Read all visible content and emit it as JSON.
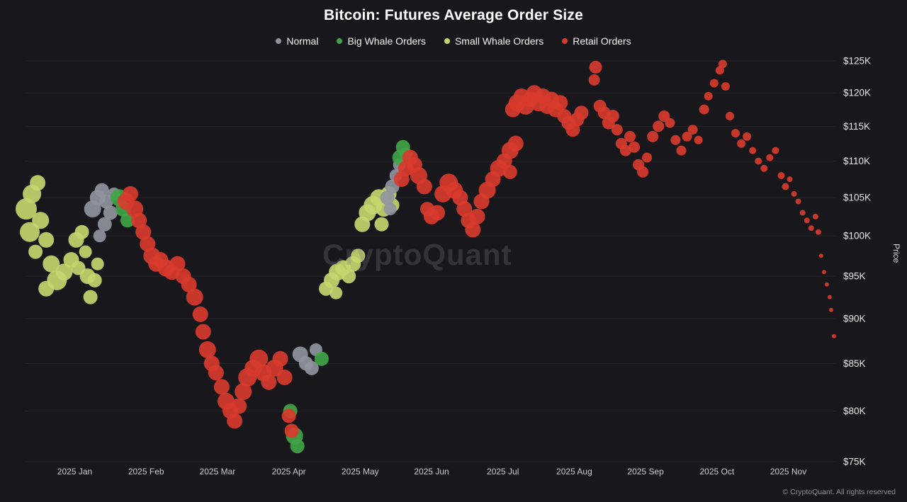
{
  "header": {
    "title": "Bitcoin: Futures Average Order Size"
  },
  "watermark": "CryptoQuant",
  "footer": {
    "copyright": "© CryptoQuant. All rights reserved"
  },
  "chart_data": {
    "type": "scatter",
    "title": "Bitcoin: Futures Average Order Size",
    "xlabel": "",
    "ylabel": "Price",
    "y_scale": "log",
    "grid": true,
    "legend_position": "top",
    "xlim": [
      -0.7,
      10.67
    ],
    "ylim": [
      75,
      125
    ],
    "y_ticks": [
      75,
      80,
      85,
      90,
      95,
      100,
      105,
      110,
      115,
      120,
      125
    ],
    "y_tick_labels": [
      "$75K",
      "$80K",
      "$85K",
      "$90K",
      "$95K",
      "$100K",
      "$105K",
      "$110K",
      "$115K",
      "$120K",
      "$125K"
    ],
    "x_ticks": [
      0,
      1,
      2,
      3,
      4,
      5,
      6,
      7,
      8,
      9,
      10
    ],
    "x_tick_labels": [
      "2025 Jan",
      "2025 Feb",
      "2025 Mar",
      "2025 Apr",
      "2025 May",
      "2025 Jun",
      "2025 Jul",
      "2025 Aug",
      "2025 Sep",
      "2025 Oct",
      "2025 Nov"
    ],
    "series": [
      {
        "name": "Normal",
        "color": "#8f949e",
        "points": [
          [
            0.25,
            103.5,
            12
          ],
          [
            0.32,
            105,
            11
          ],
          [
            0.38,
            106,
            10
          ],
          [
            0.44,
            104.5,
            10
          ],
          [
            0.5,
            103,
            10
          ],
          [
            0.42,
            101.5,
            10
          ],
          [
            0.55,
            105.5,
            9
          ],
          [
            0.35,
            100,
            9
          ],
          [
            3.16,
            86,
            11
          ],
          [
            3.24,
            85,
            10
          ],
          [
            3.32,
            84.5,
            10
          ],
          [
            3.38,
            86.5,
            9
          ],
          [
            4.38,
            105,
            10
          ],
          [
            4.45,
            106.5,
            10
          ],
          [
            4.5,
            108,
            9
          ],
          [
            4.55,
            109.5,
            9
          ],
          [
            4.42,
            103.5,
            9
          ]
        ]
      },
      {
        "name": "Big Whale Orders",
        "color": "#41a447",
        "points": [
          [
            0.62,
            105,
            12
          ],
          [
            0.68,
            103.5,
            11
          ],
          [
            0.74,
            102,
            10
          ],
          [
            3.02,
            80,
            10
          ],
          [
            3.08,
            77.5,
            12
          ],
          [
            3.12,
            76.5,
            10
          ],
          [
            3.46,
            85.5,
            10
          ],
          [
            4.56,
            110.5,
            11
          ],
          [
            4.6,
            112,
            10
          ],
          [
            4.64,
            111,
            9
          ]
        ]
      },
      {
        "name": "Small Whale Orders",
        "color": "#c6d56e",
        "points": [
          [
            -0.68,
            103.5,
            15
          ],
          [
            -0.6,
            105.5,
            13
          ],
          [
            -0.52,
            107,
            11
          ],
          [
            -0.63,
            100.5,
            14
          ],
          [
            -0.48,
            102,
            12
          ],
          [
            -0.4,
            99.5,
            11
          ],
          [
            -0.55,
            98,
            10
          ],
          [
            -0.33,
            96.5,
            12
          ],
          [
            -0.25,
            94.5,
            14
          ],
          [
            -0.4,
            93.5,
            11
          ],
          [
            -0.15,
            95.5,
            12
          ],
          [
            -0.05,
            97,
            11
          ],
          [
            0.02,
            99.5,
            11
          ],
          [
            0.1,
            100.5,
            10
          ],
          [
            0.05,
            96,
            10
          ],
          [
            0.18,
            95,
            11
          ],
          [
            0.28,
            94.5,
            10
          ],
          [
            0.15,
            98,
            9
          ],
          [
            0.32,
            96.5,
            9
          ],
          [
            0.22,
            92.5,
            10
          ],
          [
            3.52,
            93.5,
            10
          ],
          [
            3.6,
            94.5,
            11
          ],
          [
            3.68,
            95.5,
            12
          ],
          [
            3.76,
            96,
            11
          ],
          [
            3.84,
            95,
            10
          ],
          [
            3.9,
            96.5,
            11
          ],
          [
            3.97,
            97.5,
            10
          ],
          [
            3.66,
            93,
            9
          ],
          [
            4.03,
            101.5,
            11
          ],
          [
            4.1,
            103,
            12
          ],
          [
            4.18,
            104,
            13
          ],
          [
            4.26,
            105,
            12
          ],
          [
            4.33,
            103.5,
            11
          ],
          [
            4.4,
            105.5,
            11
          ],
          [
            4.3,
            101.5,
            10
          ],
          [
            4.45,
            104,
            10
          ]
        ]
      },
      {
        "name": "Retail Orders",
        "color": "#d83b2d",
        "points": [
          [
            0.72,
            104.5,
            12
          ],
          [
            0.78,
            105.5,
            11
          ],
          [
            0.84,
            103.5,
            12
          ],
          [
            0.9,
            102,
            11
          ],
          [
            0.96,
            100.5,
            11
          ],
          [
            1.02,
            99,
            11
          ],
          [
            1.08,
            97.5,
            12
          ],
          [
            1.14,
            96.5,
            11
          ],
          [
            1.2,
            97,
            11
          ],
          [
            1.28,
            96,
            12
          ],
          [
            1.36,
            95.5,
            11
          ],
          [
            1.44,
            96.5,
            11
          ],
          [
            1.52,
            95,
            11
          ],
          [
            1.6,
            94,
            11
          ],
          [
            1.68,
            92.5,
            12
          ],
          [
            1.76,
            90.5,
            11
          ],
          [
            1.8,
            88.5,
            11
          ],
          [
            1.86,
            86.5,
            12
          ],
          [
            1.92,
            85,
            11
          ],
          [
            1.98,
            84,
            11
          ],
          [
            2.06,
            82.5,
            11
          ],
          [
            2.12,
            81,
            12
          ],
          [
            2.18,
            80,
            11
          ],
          [
            2.24,
            79,
            11
          ],
          [
            2.3,
            80.5,
            11
          ],
          [
            2.36,
            82,
            12
          ],
          [
            2.42,
            83.5,
            13
          ],
          [
            2.5,
            84.5,
            12
          ],
          [
            2.58,
            85.5,
            13
          ],
          [
            2.64,
            84,
            12
          ],
          [
            2.72,
            83,
            11
          ],
          [
            2.8,
            84.5,
            12
          ],
          [
            2.88,
            85.5,
            11
          ],
          [
            2.94,
            83.5,
            11
          ],
          [
            3.0,
            79.5,
            10
          ],
          [
            3.04,
            78,
            10
          ],
          [
            4.58,
            107.5,
            11
          ],
          [
            4.64,
            109,
            11
          ],
          [
            4.7,
            110.5,
            11
          ],
          [
            4.76,
            109.5,
            11
          ],
          [
            4.82,
            108,
            12
          ],
          [
            4.9,
            106.5,
            11
          ],
          [
            4.94,
            103.5,
            10
          ],
          [
            5.0,
            102.5,
            11
          ],
          [
            5.08,
            103,
            11
          ],
          [
            5.16,
            105.5,
            12
          ],
          [
            5.24,
            107,
            13
          ],
          [
            5.32,
            106,
            12
          ],
          [
            5.4,
            105,
            11
          ],
          [
            5.46,
            103.5,
            11
          ],
          [
            5.52,
            102,
            11
          ],
          [
            5.58,
            100.8,
            11
          ],
          [
            5.64,
            102.5,
            11
          ],
          [
            5.7,
            104.5,
            11
          ],
          [
            5.78,
            106,
            12
          ],
          [
            5.86,
            107.5,
            11
          ],
          [
            5.94,
            109,
            12
          ],
          [
            6.02,
            110,
            11
          ],
          [
            6.1,
            111.5,
            12
          ],
          [
            6.18,
            112.5,
            11
          ],
          [
            6.1,
            108.5,
            10
          ],
          [
            6.14,
            117.5,
            11
          ],
          [
            6.2,
            118.5,
            12
          ],
          [
            6.26,
            119.5,
            11
          ],
          [
            6.32,
            118,
            12
          ],
          [
            6.38,
            119,
            11
          ],
          [
            6.44,
            120,
            11
          ],
          [
            6.5,
            118.5,
            12
          ],
          [
            6.56,
            119.5,
            11
          ],
          [
            6.62,
            118,
            11
          ],
          [
            6.68,
            119,
            11
          ],
          [
            6.74,
            117.5,
            11
          ],
          [
            6.8,
            118.5,
            11
          ],
          [
            6.86,
            116.5,
            10
          ],
          [
            6.92,
            115.5,
            10
          ],
          [
            6.98,
            114.5,
            10
          ],
          [
            7.04,
            116,
            10
          ],
          [
            7.1,
            117,
            10
          ],
          [
            7.28,
            122,
            8
          ],
          [
            7.3,
            124,
            9
          ],
          [
            7.36,
            118,
            9
          ],
          [
            7.42,
            117,
            9
          ],
          [
            7.48,
            115.5,
            9
          ],
          [
            7.54,
            116.5,
            9
          ],
          [
            7.6,
            114.5,
            8
          ],
          [
            7.66,
            112.5,
            8
          ],
          [
            7.72,
            111.5,
            8
          ],
          [
            7.78,
            113.5,
            8
          ],
          [
            7.84,
            112,
            8
          ],
          [
            7.9,
            109.5,
            8
          ],
          [
            7.96,
            108.5,
            8
          ],
          [
            8.02,
            110.5,
            7
          ],
          [
            8.1,
            113.5,
            8
          ],
          [
            8.18,
            115,
            8
          ],
          [
            8.26,
            116.5,
            8
          ],
          [
            8.34,
            115.5,
            7
          ],
          [
            8.42,
            113,
            7
          ],
          [
            8.5,
            111.5,
            7
          ],
          [
            8.58,
            113.5,
            7
          ],
          [
            8.66,
            114.5,
            7
          ],
          [
            8.74,
            113,
            6
          ],
          [
            8.82,
            117.5,
            7
          ],
          [
            8.88,
            119.5,
            6
          ],
          [
            8.96,
            121.5,
            6
          ],
          [
            9.04,
            123.5,
            6
          ],
          [
            9.08,
            124.5,
            6
          ],
          [
            9.12,
            121,
            6
          ],
          [
            9.18,
            116.5,
            6
          ],
          [
            9.26,
            114,
            6
          ],
          [
            9.34,
            112.5,
            6
          ],
          [
            9.42,
            113.5,
            6
          ],
          [
            9.5,
            111.5,
            5
          ],
          [
            9.58,
            110,
            5
          ],
          [
            9.66,
            109,
            5
          ],
          [
            9.74,
            110.5,
            5
          ],
          [
            9.82,
            111.5,
            5
          ],
          [
            9.9,
            108,
            5
          ],
          [
            9.96,
            106.5,
            5
          ],
          [
            10.02,
            107.5,
            4
          ],
          [
            10.08,
            105.5,
            4
          ],
          [
            10.14,
            104.5,
            4
          ],
          [
            10.2,
            103,
            4
          ],
          [
            10.26,
            102,
            4
          ],
          [
            10.32,
            101,
            4
          ],
          [
            10.38,
            102.5,
            4
          ],
          [
            10.42,
            100.5,
            4
          ],
          [
            10.46,
            97.5,
            3
          ],
          [
            10.5,
            95.5,
            3
          ],
          [
            10.54,
            94,
            3
          ],
          [
            10.58,
            92.5,
            3
          ],
          [
            10.6,
            91,
            3
          ],
          [
            10.64,
            88,
            3
          ]
        ]
      }
    ]
  }
}
